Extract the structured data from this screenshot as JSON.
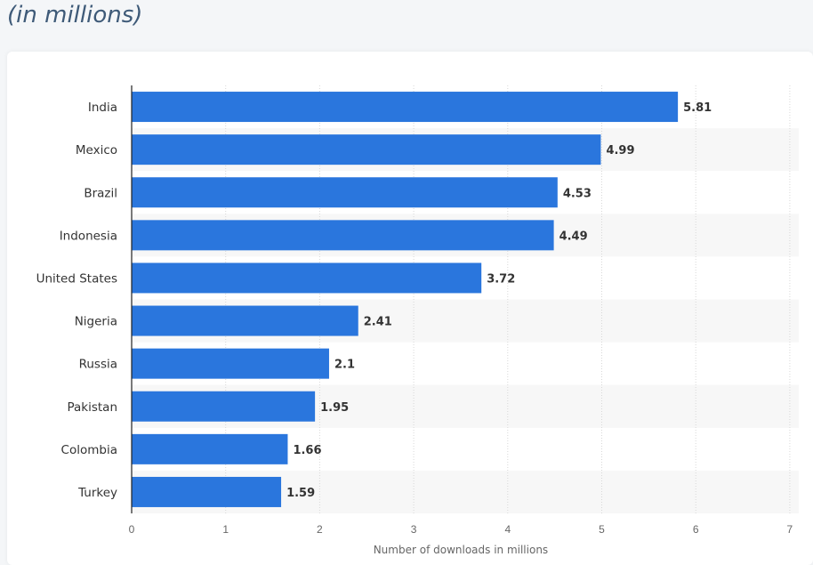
{
  "header": {
    "subtitle": "(in millions)"
  },
  "colors": {
    "bar": "#2a76dd",
    "stripe": "#f7f7f7",
    "grid": "#d8d8d8",
    "axis": "#222222",
    "text": "#333333",
    "tick_text": "#666666"
  },
  "chart_data": {
    "type": "bar",
    "orientation": "horizontal",
    "categories": [
      "India",
      "Mexico",
      "Brazil",
      "Indonesia",
      "United States",
      "Nigeria",
      "Russia",
      "Pakistan",
      "Colombia",
      "Turkey"
    ],
    "values": [
      5.81,
      4.99,
      4.53,
      4.49,
      3.72,
      2.41,
      2.1,
      1.95,
      1.66,
      1.59
    ],
    "value_labels": [
      "5.81",
      "4.99",
      "4.53",
      "4.49",
      "3.72",
      "2.41",
      "2.1",
      "1.95",
      "1.66",
      "1.59"
    ],
    "xlabel": "Number of downloads in millions",
    "ylabel": "",
    "xlim": [
      0,
      7
    ],
    "xticks": [
      0,
      1,
      2,
      3,
      4,
      5,
      6,
      7
    ],
    "grid": true,
    "legend": "none"
  }
}
